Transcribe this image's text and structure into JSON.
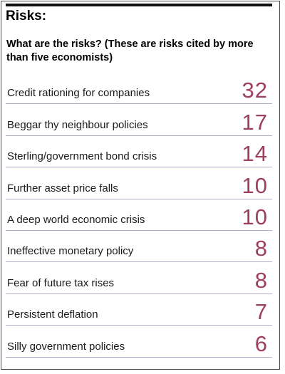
{
  "panel": {
    "title": "Risks:",
    "subtitle": "What are the risks? (These are risks cited by more than five economists)"
  },
  "colors": {
    "value_text": "#9c3f63",
    "row_rule": "#b3a9c9",
    "top_rule": "#111111"
  },
  "risks": [
    {
      "label": "Credit rationing for companies",
      "value": "32"
    },
    {
      "label": "Beggar thy neighbour policies",
      "value": "17"
    },
    {
      "label": "Sterling/government bond crisis",
      "value": "14"
    },
    {
      "label": "Further asset price falls",
      "value": "10"
    },
    {
      "label": "A deep world economic crisis",
      "value": "10"
    },
    {
      "label": "Ineffective monetary policy",
      "value": "8"
    },
    {
      "label": "Fear of future tax rises",
      "value": "8"
    },
    {
      "label": "Persistent deflation",
      "value": "7"
    },
    {
      "label": "Silly government policies",
      "value": "6"
    }
  ]
}
